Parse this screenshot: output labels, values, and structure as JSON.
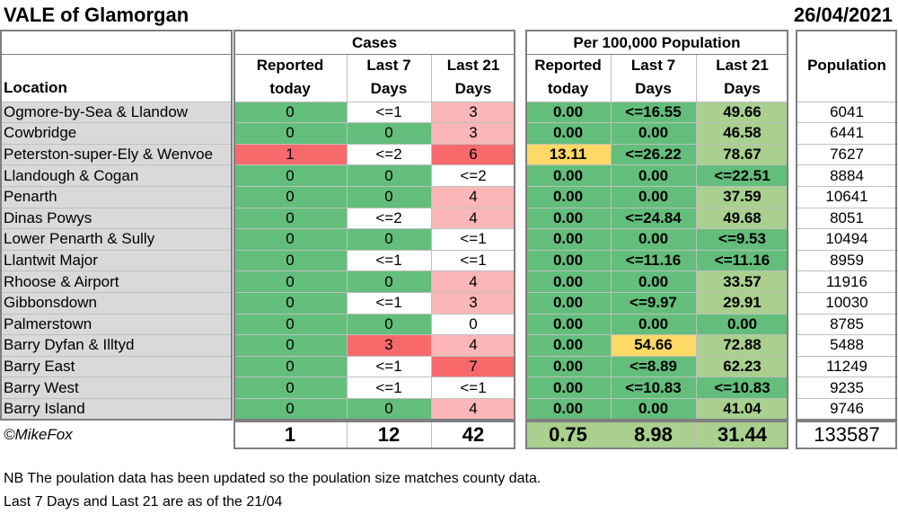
{
  "title": "VALE of Glamorgan",
  "date": "26/04/2021",
  "groups": {
    "cases": "Cases",
    "per100k": "Per 100,000 Population"
  },
  "headers": {
    "location": "Location",
    "reported_today_l1": "Reported",
    "reported_today_l2": "today",
    "last7_l1": "Last 7",
    "last7_l2": "Days",
    "last21_l1": "Last 21",
    "last21_l2": "Days",
    "population": "Population"
  },
  "colors": {
    "green": "#63be7b",
    "light_green": "#a9d08e",
    "pale_green": "#c6e0b4",
    "yellow": "#ffd966",
    "red": "#f8696b",
    "pink": "#fbb7b8",
    "white": "#ffffff"
  },
  "rows": [
    {
      "location": "Ogmore-by-Sea & Llandow",
      "c_today": "0",
      "c_7": "<=1",
      "c_21": "3",
      "p_today": "0.00",
      "p_7": "<=16.55",
      "p_21": "49.66",
      "population": "6041"
    },
    {
      "location": "Cowbridge",
      "c_today": "0",
      "c_7": "0",
      "c_21": "3",
      "p_today": "0.00",
      "p_7": "0.00",
      "p_21": "46.58",
      "population": "6441"
    },
    {
      "location": "Peterston-super-Ely & Wenvoe",
      "c_today": "1",
      "c_7": "<=2",
      "c_21": "6",
      "p_today": "13.11",
      "p_7": "<=26.22",
      "p_21": "78.67",
      "population": "7627"
    },
    {
      "location": "Llandough & Cogan",
      "c_today": "0",
      "c_7": "0",
      "c_21": "<=2",
      "p_today": "0.00",
      "p_7": "0.00",
      "p_21": "<=22.51",
      "population": "8884"
    },
    {
      "location": "Penarth",
      "c_today": "0",
      "c_7": "0",
      "c_21": "4",
      "p_today": "0.00",
      "p_7": "0.00",
      "p_21": "37.59",
      "population": "10641"
    },
    {
      "location": "Dinas Powys",
      "c_today": "0",
      "c_7": "<=2",
      "c_21": "4",
      "p_today": "0.00",
      "p_7": "<=24.84",
      "p_21": "49.68",
      "population": "8051"
    },
    {
      "location": "Lower Penarth & Sully",
      "c_today": "0",
      "c_7": "0",
      "c_21": "<=1",
      "p_today": "0.00",
      "p_7": "0.00",
      "p_21": "<=9.53",
      "population": "10494"
    },
    {
      "location": "Llantwit Major",
      "c_today": "0",
      "c_7": "<=1",
      "c_21": "<=1",
      "p_today": "0.00",
      "p_7": "<=11.16",
      "p_21": "<=11.16",
      "population": "8959"
    },
    {
      "location": "Rhoose & Airport",
      "c_today": "0",
      "c_7": "0",
      "c_21": "4",
      "p_today": "0.00",
      "p_7": "0.00",
      "p_21": "33.57",
      "population": "11916"
    },
    {
      "location": "Gibbonsdown",
      "c_today": "0",
      "c_7": "<=1",
      "c_21": "3",
      "p_today": "0.00",
      "p_7": "<=9.97",
      "p_21": "29.91",
      "population": "10030"
    },
    {
      "location": "Palmerstown",
      "c_today": "0",
      "c_7": "0",
      "c_21": "0",
      "p_today": "0.00",
      "p_7": "0.00",
      "p_21": "0.00",
      "population": "8785"
    },
    {
      "location": "Barry Dyfan & Illtyd",
      "c_today": "0",
      "c_7": "3",
      "c_21": "4",
      "p_today": "0.00",
      "p_7": "54.66",
      "p_21": "72.88",
      "population": "5488"
    },
    {
      "location": "Barry East",
      "c_today": "0",
      "c_7": "<=1",
      "c_21": "7",
      "p_today": "0.00",
      "p_7": "<=8.89",
      "p_21": "62.23",
      "population": "11249"
    },
    {
      "location": "Barry West",
      "c_today": "0",
      "c_7": "<=1",
      "c_21": "<=1",
      "p_today": "0.00",
      "p_7": "<=10.83",
      "p_21": "<=10.83",
      "population": "9235"
    },
    {
      "location": "Barry Island",
      "c_today": "0",
      "c_7": "0",
      "c_21": "4",
      "p_today": "0.00",
      "p_7": "0.00",
      "p_21": "41.04",
      "population": "9746"
    }
  ],
  "totals": {
    "credit": "©MikeFox",
    "c_today": "1",
    "c_7": "12",
    "c_21": "42",
    "p_today": "0.75",
    "p_7": "8.98",
    "p_21": "31.44",
    "population": "133587"
  },
  "notes": [
    "NB The poulation data has been updated so the poulation size matches county data.",
    "Last 7 Days and Last 21 are as of the 21/04"
  ]
}
